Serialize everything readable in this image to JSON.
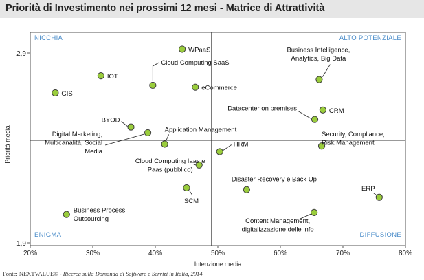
{
  "header": {
    "title": "Priorità di Investimento nei prossimi 12 mesi - Matrice di Attrattività"
  },
  "footer": {
    "source_brand": "Fonte: NEXTVALUE©",
    "source_rest": " - Ricerca sulla Domanda di Software e Servizi in Italia, 2014"
  },
  "colors": {
    "point_fill": "#9acd3c",
    "point_stroke": "#3d3d3d",
    "quadrant_label": "#4a8cc9",
    "header_bg": "#e6e6e6"
  },
  "chart_data": {
    "type": "scatter",
    "title": "Priorità di Investimento nei prossimi 12 mesi - Matrice di Attrattività",
    "xlabel": "Intenzione media",
    "ylabel": "Priorità media",
    "xlim": [
      0.2,
      0.8
    ],
    "ylim": [
      1.9,
      2.9
    ],
    "x_ticks": [
      "20%",
      "30%",
      "40%",
      "50%",
      "60%",
      "70%",
      "80%"
    ],
    "x_tick_values": [
      0.2,
      0.3,
      0.4,
      0.5,
      0.6,
      0.7,
      0.8
    ],
    "y_ticks": [
      "1,9",
      "2,9"
    ],
    "y_tick_values": [
      1.9,
      2.9
    ],
    "divider_x": 0.49,
    "divider_y": 2.44,
    "quadrants": {
      "top_left": "NICCHIA",
      "top_right": "ALTO POTENZIALE",
      "bottom_left": "ENIGMA",
      "bottom_right": "DIFFUSIONE"
    },
    "points": [
      {
        "label": "WPaaS",
        "x": 0.443,
        "y": 2.92
      },
      {
        "label": "IOT",
        "x": 0.313,
        "y": 2.78
      },
      {
        "label": "Cloud Computing SaaS",
        "x": 0.396,
        "y": 2.73
      },
      {
        "label": "eCommerce",
        "x": 0.464,
        "y": 2.72
      },
      {
        "label": "GIS",
        "x": 0.24,
        "y": 2.69
      },
      {
        "label": "Business Intelligence,\nAnalytics, Big Data",
        "x": 0.662,
        "y": 2.76
      },
      {
        "label": "CRM",
        "x": 0.668,
        "y": 2.6
      },
      {
        "label": "Datacenter on premises",
        "x": 0.655,
        "y": 2.55
      },
      {
        "label": "BYOD",
        "x": 0.361,
        "y": 2.51
      },
      {
        "label": "Application Management",
        "x": 0.415,
        "y": 2.42
      },
      {
        "label": "Digital Marketing,\nMulticanalità, Social\nMedia",
        "x": 0.388,
        "y": 2.48
      },
      {
        "label": "Security, Compliance,\nRisk Management",
        "x": 0.666,
        "y": 2.41
      },
      {
        "label": "HRM",
        "x": 0.503,
        "y": 2.38
      },
      {
        "label": "Cloud Computing Iaas e\nPaas (pubblico)",
        "x": 0.47,
        "y": 2.31
      },
      {
        "label": "SCM",
        "x": 0.45,
        "y": 2.19
      },
      {
        "label": "Disaster Recovery e Back Up",
        "x": 0.546,
        "y": 2.18
      },
      {
        "label": "ERP",
        "x": 0.758,
        "y": 2.14
      },
      {
        "label": "Business Process\nOutsourcing",
        "x": 0.258,
        "y": 2.05
      },
      {
        "label": "Content Management,\ndigitalizzazione delle info",
        "x": 0.654,
        "y": 2.06
      }
    ]
  }
}
